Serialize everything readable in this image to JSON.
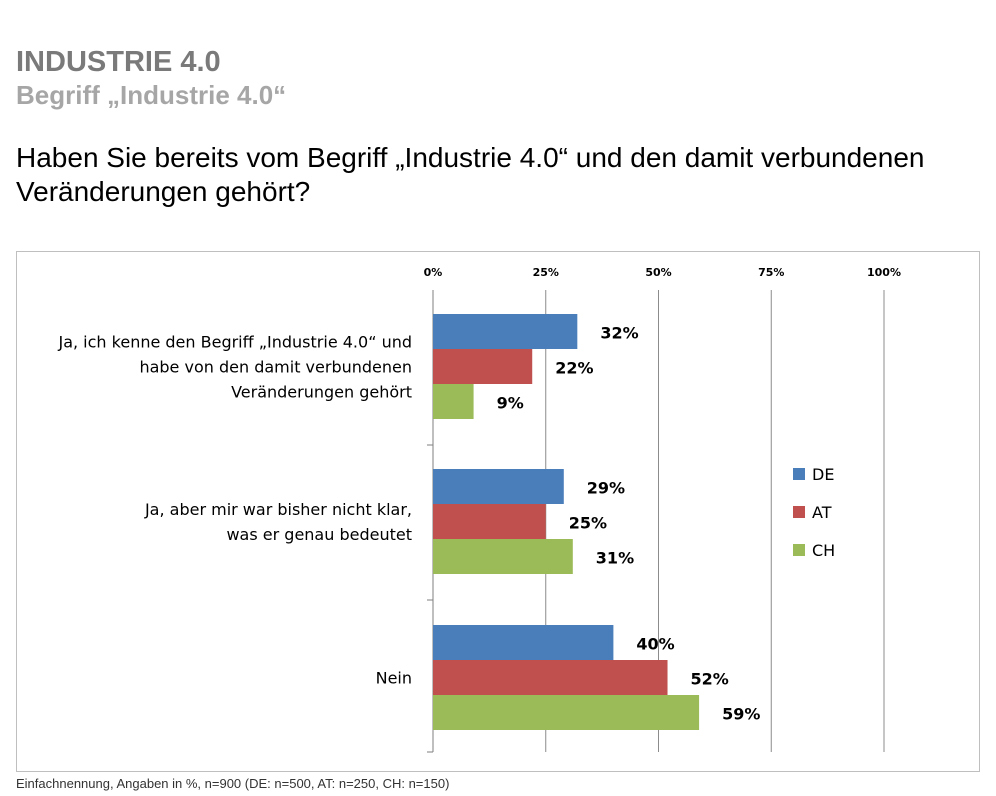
{
  "header": {
    "title": "INDUSTRIE 4.0",
    "subtitle": "Begriff „Industrie 4.0“"
  },
  "question": "Haben Sie bereits vom Begriff „Industrie 4.0“ und den damit verbundenen Veränderungen gehört?",
  "footnote": "Einfachnennung, Angaben in %, n=900 (DE: n=500, AT: n=250, CH: n=150)",
  "colors": {
    "DE": "#4a7ebb",
    "AT": "#c0504d",
    "CH": "#9bbb59",
    "grid": "#8c8c8c",
    "label": "#000000"
  },
  "chart_data": {
    "type": "bar",
    "orientation": "horizontal",
    "title": "",
    "xlabel": "",
    "ylabel": "",
    "xlim": [
      0,
      100
    ],
    "ticks": [
      0,
      25,
      50,
      75,
      100
    ],
    "tick_labels": [
      "0%",
      "25%",
      "50%",
      "75%",
      "100%"
    ],
    "grid": true,
    "legend": "right",
    "categories": [
      [
        "Ja, ich kenne den Begriff „Industrie 4.0“ und",
        "habe von den damit verbundenen",
        "Veränderungen gehört"
      ],
      [
        "Ja, aber mir war bisher nicht klar,",
        "was er genau bedeutet"
      ],
      [
        "Nein"
      ]
    ],
    "series": [
      {
        "name": "DE",
        "values": [
          32,
          29,
          40
        ],
        "labels": [
          "32%",
          "29%",
          "40%"
        ]
      },
      {
        "name": "AT",
        "values": [
          22,
          25,
          52
        ],
        "labels": [
          "22%",
          "25%",
          "52%"
        ]
      },
      {
        "name": "CH",
        "values": [
          9,
          31,
          59
        ],
        "labels": [
          "9%",
          "31%",
          "59%"
        ]
      }
    ]
  }
}
